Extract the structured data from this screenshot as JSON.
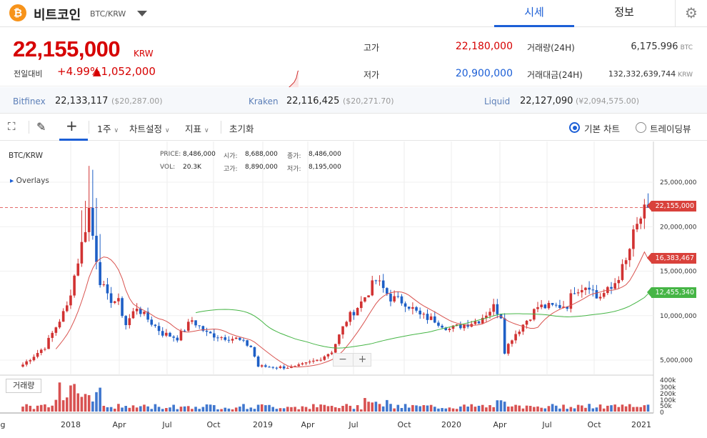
{
  "header": {
    "coin_symbol_icon": "bitcoin-icon",
    "coin_name": "비트코인",
    "pair": "BTC/KRW",
    "tabs": [
      "시세",
      "정보"
    ],
    "settings_icon": "gear-icon"
  },
  "ticker": {
    "price": "22,155,000",
    "unit": "KRW",
    "change_label": "전일대비",
    "change_rate": "+4.99%",
    "change_amount": "▲1,052,000",
    "high_label": "고가",
    "high": "22,180,000",
    "low_label": "저가",
    "low": "20,900,000",
    "vol_label": "거래량(24H)",
    "vol": "6,175.996",
    "vol_unit": "BTC",
    "amt_label": "거래대금(24H)",
    "amt": "132,332,639,744",
    "amt_unit": "KRW"
  },
  "exchanges": [
    {
      "name": "Bitfinex",
      "value": "22,133,117",
      "sub": "($20,287.00)"
    },
    {
      "name": "Kraken",
      "value": "22,116,425",
      "sub": "($20,271.70)"
    },
    {
      "name": "Liquid",
      "value": "22,127,090",
      "sub": "(¥2,094,575.00)"
    }
  ],
  "toolbar": {
    "period": "1주",
    "settings": "차트설정",
    "indicator": "지표",
    "reset": "초기화",
    "basic_chart": "기본 차트",
    "tradingview": "트레이딩뷰"
  },
  "chart": {
    "pair_label": "BTC/KRW",
    "overlays_label": "Overlays",
    "info": {
      "price_k": "PRICE:",
      "price_v": "8,486,000",
      "vol_k": "VOL:",
      "vol_v": "20.3K",
      "open_k": "시가:",
      "open_v": "8,688,000",
      "high_k": "고가:",
      "high_v": "8,890,000",
      "close_k": "종가:",
      "close_v": "8,486,000",
      "low_k": "저가:",
      "low_v": "8,195,000"
    },
    "volume_button": "거래량",
    "zoom_minus": "−",
    "zoom_plus": "+",
    "tag_current": "22,155,000",
    "tag_ma1": "16,383,467",
    "tag_ma2": "12,455,340",
    "colors": {
      "up": "#d13232",
      "down": "#1e5fc6",
      "ma_short": "#d9534f",
      "ma_long": "#45b545"
    }
  },
  "chart_data": {
    "type": "candlestick",
    "title": "BTC/KRW",
    "y_axis_ticks": [
      "25,000,000",
      "20,000,000",
      "15,000,000",
      "10,000,000",
      "5,000,000"
    ],
    "volume_axis_ticks": [
      "400k",
      "300k",
      "200k",
      "100k",
      "50k",
      "0"
    ],
    "x_axis_ticks": [
      "g",
      "2018",
      "Apr",
      "Jul",
      "Oct",
      "2019",
      "Apr",
      "Jul",
      "Oct",
      "2020",
      "Apr",
      "Jul",
      "Oct",
      "2021"
    ],
    "ylim": [
      3000000,
      29000000
    ],
    "grid": true,
    "anchors": [
      [
        0,
        4500000
      ],
      [
        6,
        6500000
      ],
      [
        12,
        11000000
      ],
      [
        16,
        18000000
      ],
      [
        18,
        22000000
      ],
      [
        19,
        19000000
      ],
      [
        21,
        14000000
      ],
      [
        23,
        12000000
      ],
      [
        26,
        11500000
      ],
      [
        28,
        9000000
      ],
      [
        31,
        11000000
      ],
      [
        33,
        10000000
      ],
      [
        38,
        8000000
      ],
      [
        42,
        7500000
      ],
      [
        46,
        9500000
      ],
      [
        50,
        8000000
      ],
      [
        54,
        7600000
      ],
      [
        58,
        7400000
      ],
      [
        62,
        6500000
      ],
      [
        64,
        4300000
      ],
      [
        70,
        4200000
      ],
      [
        74,
        4200000
      ],
      [
        80,
        5000000
      ],
      [
        84,
        6000000
      ],
      [
        88,
        9500000
      ],
      [
        92,
        11500000
      ],
      [
        96,
        14000000
      ],
      [
        98,
        13000000
      ],
      [
        100,
        12000000
      ],
      [
        104,
        11500000
      ],
      [
        108,
        10000000
      ],
      [
        112,
        9500000
      ],
      [
        116,
        8500000
      ],
      [
        120,
        9000000
      ],
      [
        124,
        9500000
      ],
      [
        128,
        11000000
      ],
      [
        130,
        10000000
      ],
      [
        131,
        6000000
      ],
      [
        133,
        7500000
      ],
      [
        136,
        9000000
      ],
      [
        140,
        11000000
      ],
      [
        144,
        11000000
      ],
      [
        148,
        11200000
      ],
      [
        150,
        13000000
      ],
      [
        154,
        13500000
      ],
      [
        156,
        12000000
      ],
      [
        160,
        13000000
      ],
      [
        164,
        16000000
      ],
      [
        166,
        19000000
      ],
      [
        168,
        21000000
      ],
      [
        170,
        22155000
      ]
    ],
    "ma_short_end": 16383467,
    "ma_long_end": 12455340,
    "current_price": 22155000
  }
}
